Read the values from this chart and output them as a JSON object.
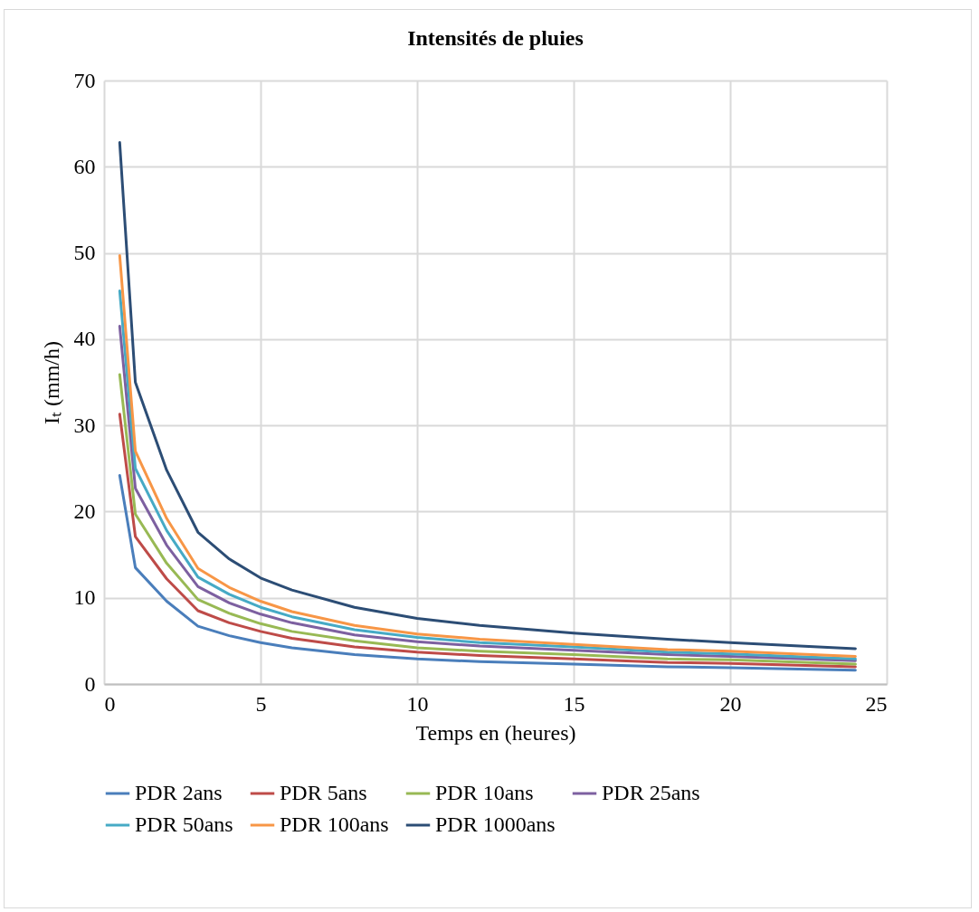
{
  "chart_data": {
    "type": "line",
    "title": "Intensités de pluies",
    "xlabel": "Temps en (heures)",
    "ylabel": "Iₜ (mm/h)",
    "x": [
      0.5,
      1,
      2,
      3,
      4,
      5,
      6,
      8,
      10,
      12,
      15,
      18,
      20,
      24
    ],
    "series": [
      {
        "name": "PDR 2ans",
        "color": "#4a7ebb",
        "values": [
          24.2,
          13.5,
          9.6,
          6.7,
          5.6,
          4.8,
          4.2,
          3.4,
          2.9,
          2.6,
          2.3,
          2.0,
          1.9,
          1.6
        ]
      },
      {
        "name": "PDR 5ans",
        "color": "#be4b48",
        "values": [
          31.3,
          17.1,
          12.2,
          8.5,
          7.1,
          6.1,
          5.3,
          4.3,
          3.7,
          3.3,
          2.9,
          2.5,
          2.4,
          2.0
        ]
      },
      {
        "name": "PDR 10ans",
        "color": "#98b954",
        "values": [
          35.9,
          19.7,
          14.0,
          9.8,
          8.2,
          7.0,
          6.1,
          5.0,
          4.2,
          3.8,
          3.4,
          2.9,
          2.8,
          2.3
        ]
      },
      {
        "name": "PDR 25ans",
        "color": "#7d60a0",
        "values": [
          41.5,
          22.7,
          16.1,
          11.3,
          9.4,
          8.1,
          7.1,
          5.7,
          4.9,
          4.4,
          3.9,
          3.4,
          3.2,
          2.7
        ]
      },
      {
        "name": "PDR 50ans",
        "color": "#46aac5",
        "values": [
          45.6,
          25.0,
          17.8,
          12.4,
          10.4,
          8.9,
          7.8,
          6.3,
          5.4,
          4.8,
          4.3,
          3.7,
          3.5,
          2.9
        ]
      },
      {
        "name": "PDR 100ans",
        "color": "#f79646",
        "values": [
          49.7,
          27.0,
          19.2,
          13.4,
          11.2,
          9.6,
          8.4,
          6.8,
          5.8,
          5.2,
          4.6,
          4.0,
          3.8,
          3.2
        ]
      },
      {
        "name": "PDR 1000ans",
        "color": "#2c4d75",
        "values": [
          62.8,
          35.0,
          24.8,
          17.6,
          14.5,
          12.3,
          10.9,
          8.9,
          7.6,
          6.8,
          5.9,
          5.2,
          4.8,
          4.1
        ]
      }
    ],
    "xlim": [
      0,
      25
    ],
    "xticks": [
      0,
      5,
      10,
      15,
      20,
      25
    ],
    "ylim": [
      0,
      70
    ],
    "yticks": [
      0,
      10,
      20,
      30,
      40,
      50,
      60,
      70
    ],
    "grid": true,
    "legend": "bottom",
    "marker": "none",
    "line_style": "solid"
  }
}
